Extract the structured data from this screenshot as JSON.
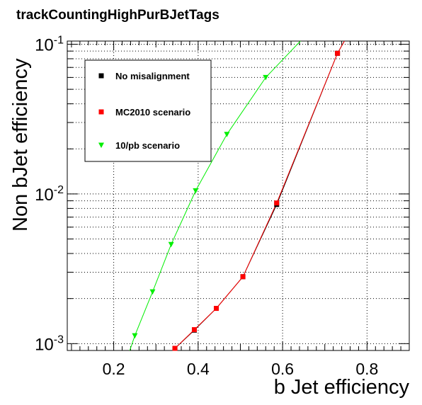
{
  "chart_data": {
    "type": "line",
    "title": "trackCountingHighPurBJetTags",
    "xlabel": "b Jet efficiency",
    "ylabel": "Non bJet efficiency",
    "xlim": [
      0.09,
      0.9
    ],
    "ylim": [
      0.0009,
      0.105
    ],
    "y_scale": "log",
    "grid": true,
    "legend_position": "top-left",
    "x_ticks": [
      {
        "value": 0.2,
        "label": "0.2"
      },
      {
        "value": 0.4,
        "label": "0.4"
      },
      {
        "value": 0.6,
        "label": "0.6"
      },
      {
        "value": 0.8,
        "label": "0.8"
      }
    ],
    "y_ticks": [
      {
        "value": 0.001,
        "base": "10",
        "exp": "-3"
      },
      {
        "value": 0.01,
        "base": "10",
        "exp": "-2"
      },
      {
        "value": 0.1,
        "base": "10",
        "exp": "-1"
      }
    ],
    "series": [
      {
        "name": "No misalignment",
        "color": "#000000",
        "marker": "square",
        "points": [
          [
            0.345,
            0.00093
          ],
          [
            0.391,
            0.00123
          ],
          [
            0.443,
            0.00172
          ],
          [
            0.506,
            0.0028
          ],
          [
            0.586,
            0.0085
          ],
          [
            0.73,
            0.087
          ]
        ],
        "curve": [
          [
            0.345,
            0.00093
          ],
          [
            0.391,
            0.00123
          ],
          [
            0.443,
            0.00172
          ],
          [
            0.506,
            0.0028
          ],
          [
            0.586,
            0.0085
          ],
          [
            0.73,
            0.087
          ],
          [
            0.748,
            0.107
          ]
        ]
      },
      {
        "name": "MC2010 scenario",
        "color": "#ff0000",
        "marker": "square",
        "points": [
          [
            0.345,
            0.00093
          ],
          [
            0.391,
            0.00124
          ],
          [
            0.443,
            0.00172
          ],
          [
            0.506,
            0.0028
          ],
          [
            0.586,
            0.0087
          ],
          [
            0.73,
            0.087
          ]
        ],
        "curve": [
          [
            0.345,
            0.00093
          ],
          [
            0.391,
            0.00124
          ],
          [
            0.443,
            0.00172
          ],
          [
            0.506,
            0.0028
          ],
          [
            0.586,
            0.0087
          ],
          [
            0.73,
            0.087
          ],
          [
            0.748,
            0.107
          ]
        ]
      },
      {
        "name": "10/pb scenario",
        "color": "#00ee00",
        "marker": "triangle-down",
        "points": [
          [
            0.25,
            0.00113
          ],
          [
            0.292,
            0.00222
          ],
          [
            0.336,
            0.0046
          ],
          [
            0.394,
            0.0105
          ],
          [
            0.468,
            0.025
          ],
          [
            0.56,
            0.06
          ]
        ],
        "curve": [
          [
            0.238,
            0.0009
          ],
          [
            0.25,
            0.00113
          ],
          [
            0.292,
            0.00222
          ],
          [
            0.336,
            0.0046
          ],
          [
            0.394,
            0.0105
          ],
          [
            0.468,
            0.025
          ],
          [
            0.56,
            0.06
          ],
          [
            0.645,
            0.107
          ]
        ]
      }
    ]
  }
}
